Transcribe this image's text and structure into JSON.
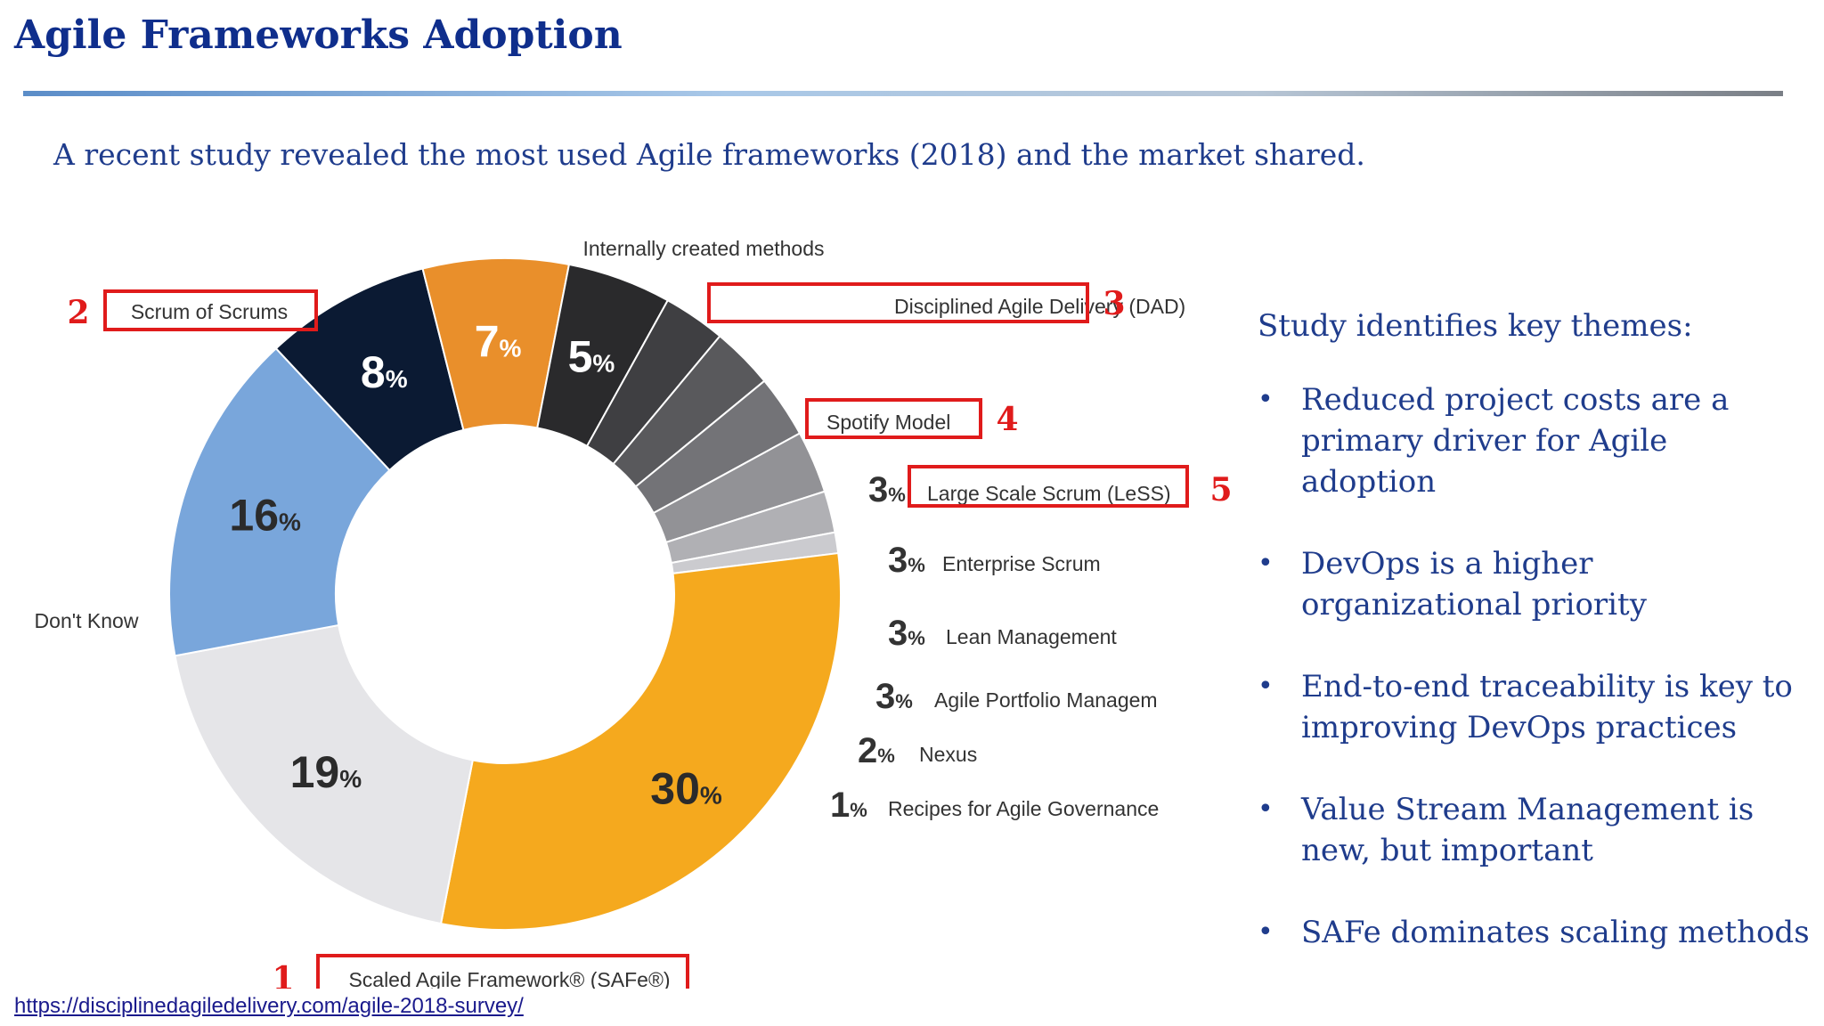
{
  "slide": {
    "title": "Agile Frameworks Adoption",
    "intro": "A recent study revealed the most used Agile frameworks (2018) and the market shared.",
    "source_url": "https://disciplinedagiledelivery.com/agile-2018-survey/"
  },
  "themes": {
    "heading": "Study identifies key themes:",
    "items": [
      "Reduced project costs are a primary driver for Agile adoption",
      "DevOps is a higher organizational priority",
      "End-to-end traceability is key to improving DevOps practices",
      "Value Stream Management is new, but important",
      "SAFe dominates scaling methods"
    ]
  },
  "chart_data": {
    "type": "pie",
    "donut": true,
    "unit": "%",
    "slices": [
      {
        "name": "Internally created methods",
        "value": 8,
        "color": "#0b1a33"
      },
      {
        "name": "Disciplined Agile Delivery (DAD)",
        "value": 7,
        "color": "#e98f2b",
        "highlight": "3"
      },
      {
        "name": "Spotify Model",
        "value": 5,
        "color": "#2a2a2c",
        "highlight": "4"
      },
      {
        "name": "Large Scale Scrum (LeSS)",
        "value": 3,
        "color": "#3f3f42",
        "highlight": "5"
      },
      {
        "name": "Enterprise Scrum",
        "value": 3,
        "color": "#59595c"
      },
      {
        "name": "Lean Management",
        "value": 3,
        "color": "#737377"
      },
      {
        "name": "Agile Portfolio Managem",
        "value": 3,
        "color": "#929296"
      },
      {
        "name": "Nexus",
        "value": 2,
        "color": "#b0b0b4"
      },
      {
        "name": "Recipes for Agile Governance",
        "value": 1,
        "color": "#cbcbcf"
      },
      {
        "name": "Scaled Agile Framework® (SAFe®)",
        "value": 30,
        "color": "#f5a91e",
        "highlight": "1"
      },
      {
        "name": "Don't Know",
        "value": 19,
        "color": "#e5e5e8"
      },
      {
        "name": "Scrum of Scrums",
        "value": 16,
        "color": "#79a6db",
        "highlight": "2"
      }
    ],
    "highlight_color": "#e01b1b"
  }
}
